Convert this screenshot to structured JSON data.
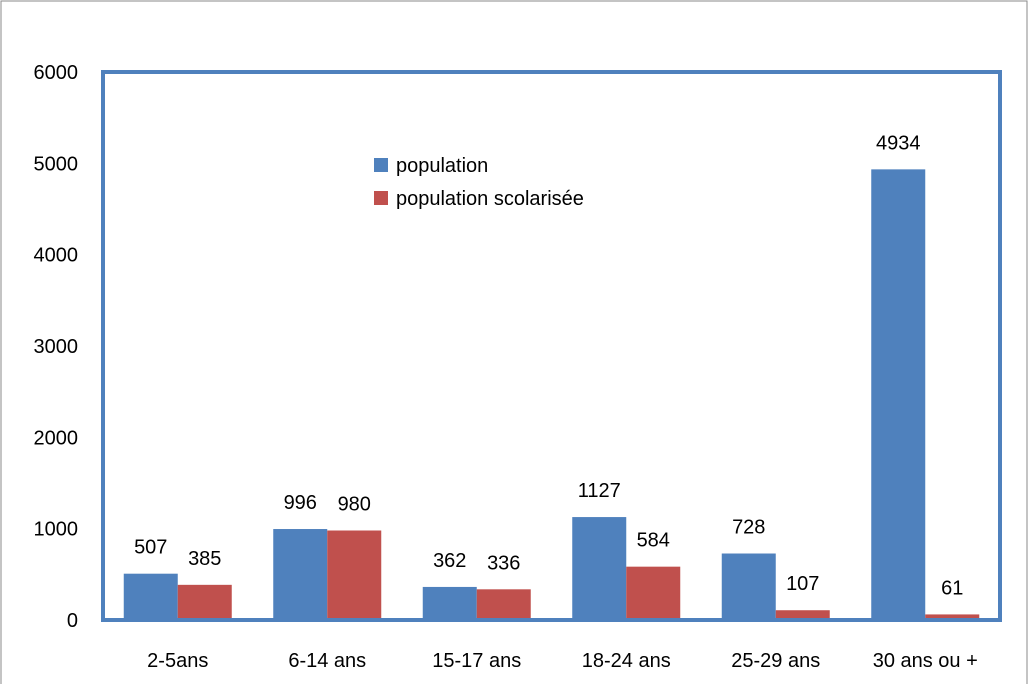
{
  "chart_data": {
    "type": "bar",
    "categories": [
      "2-5ans",
      "6-14 ans",
      "15-17 ans",
      "18-24 ans",
      "25-29 ans",
      "30 ans ou +"
    ],
    "series": [
      {
        "name": "population",
        "values": [
          507,
          996,
          362,
          1127,
          728,
          4934
        ],
        "color": "#4f81bd"
      },
      {
        "name": "population scolarisée",
        "values": [
          385,
          980,
          336,
          584,
          107,
          61
        ],
        "color": "#c0504d"
      }
    ],
    "y_ticks": [
      "0",
      "1000",
      "2000",
      "3000",
      "4000",
      "5000",
      "6000"
    ],
    "ylim": [
      0,
      6000
    ],
    "grid": false,
    "legend_position": "top-center",
    "plot_border_color": "#4f81bd"
  }
}
